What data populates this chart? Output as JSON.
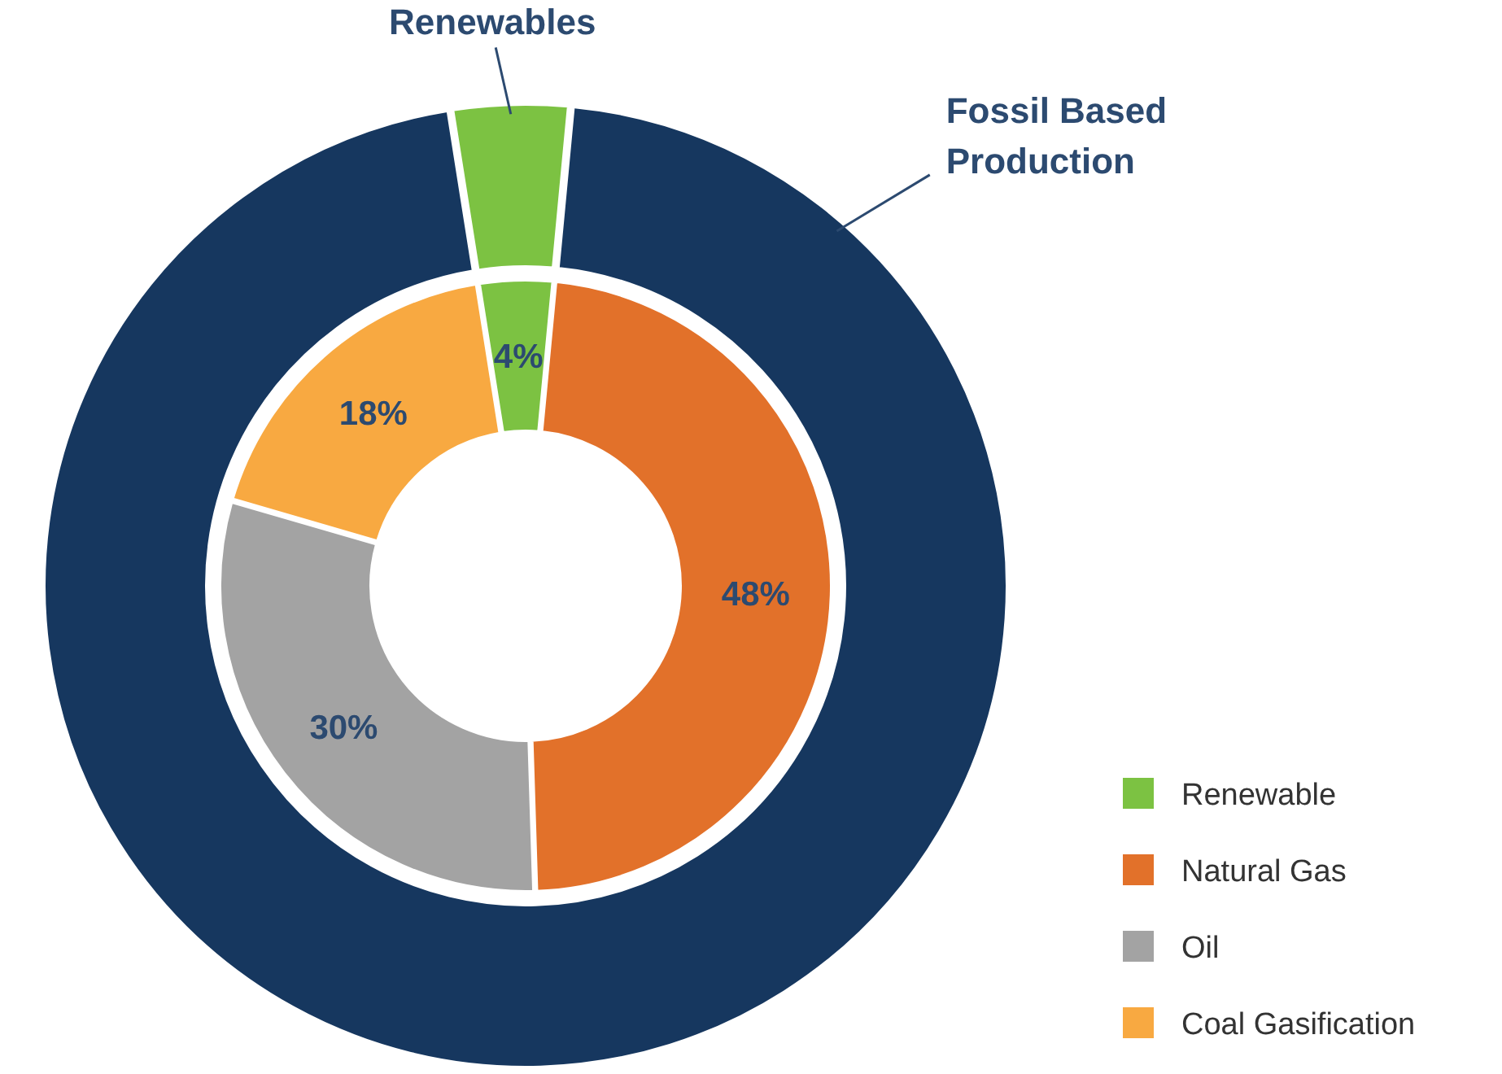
{
  "chart_data": [
    {
      "type": "donut",
      "categories": [
        "Renewables",
        "Fossil Based Production"
      ],
      "values": [
        4,
        96
      ],
      "colors": [
        "#7cc242",
        "#16375f"
      ],
      "legend": false
    },
    {
      "type": "donut",
      "categories": [
        "Renewable",
        "Natural Gas",
        "Oil",
        "Coal Gasification"
      ],
      "values": [
        4,
        48,
        30,
        18
      ],
      "value_labels": [
        "4%",
        "48%",
        "30%",
        "18%"
      ],
      "colors": [
        "#7cc242",
        "#e2712a",
        "#a3a3a3",
        "#f8a941"
      ],
      "legend": "bottom right"
    }
  ]
}
